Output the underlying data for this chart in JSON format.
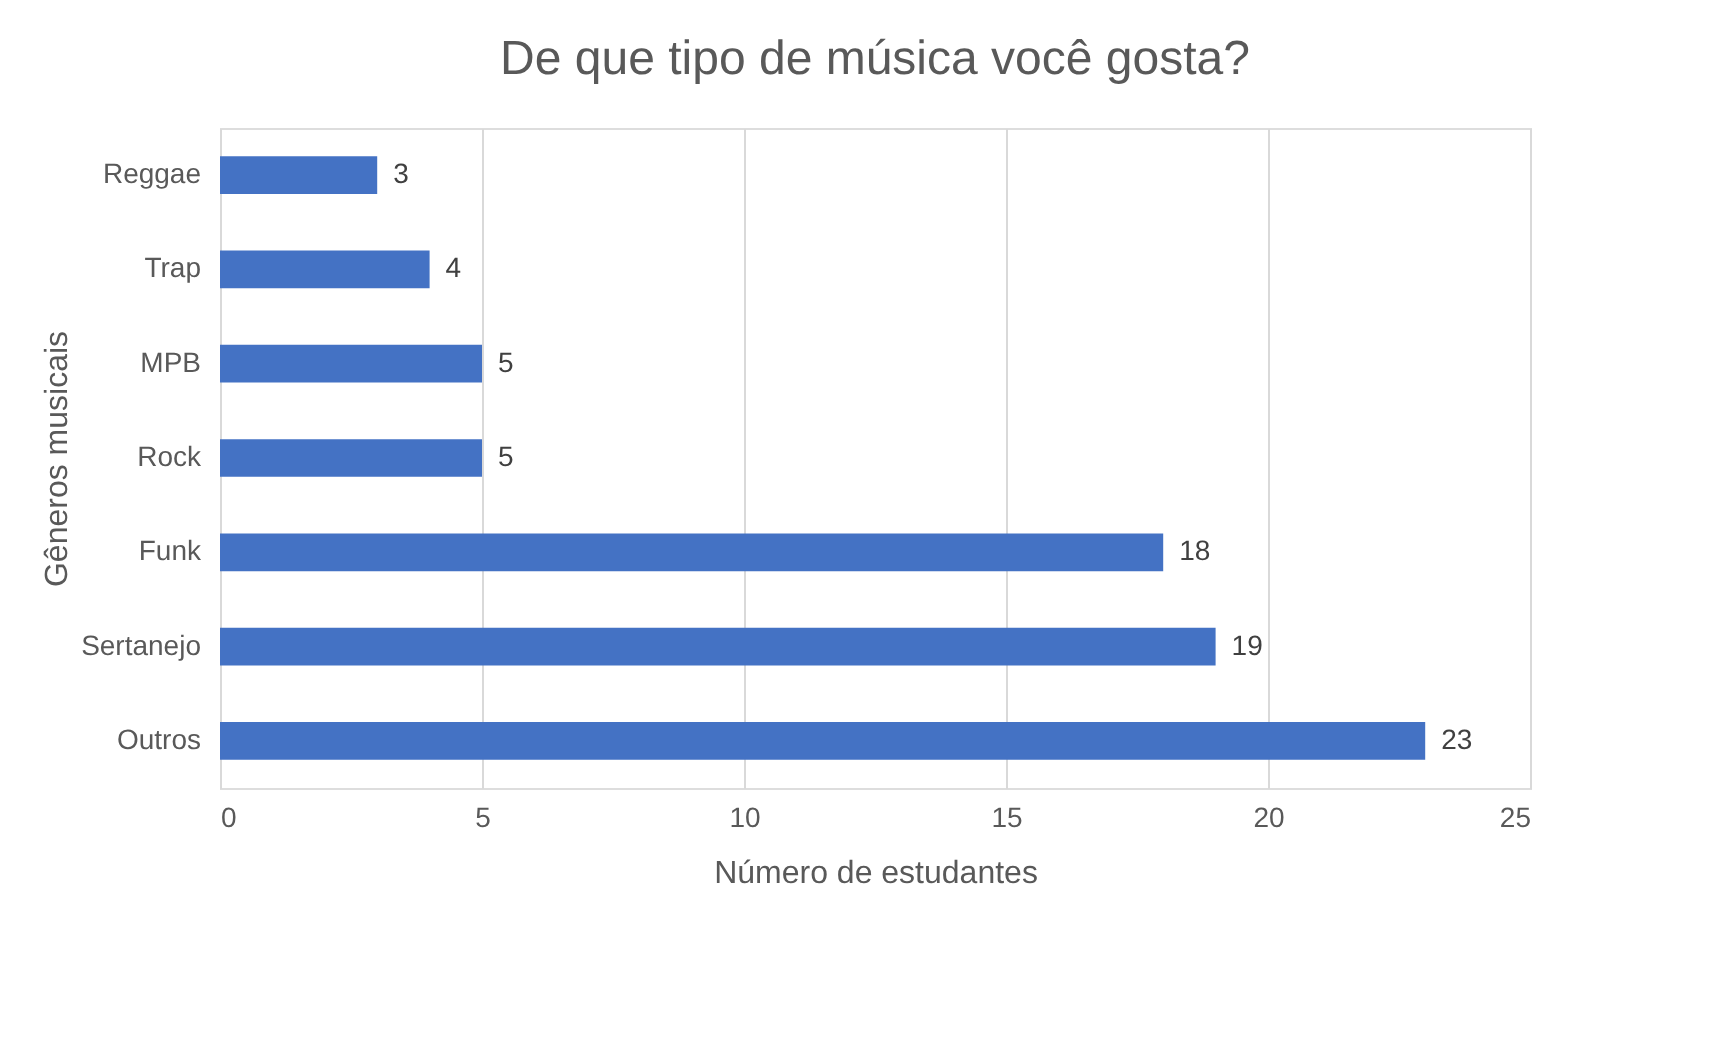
{
  "chart_data": {
    "type": "bar",
    "orientation": "horizontal",
    "title": "De que tipo de música você gosta?",
    "xlabel": "Número de estudantes",
    "ylabel": "Gêneros musicais",
    "categories": [
      "Reggae",
      "Trap",
      "MPB",
      "Rock",
      "Funk",
      "Sertanejo",
      "Outros"
    ],
    "values": [
      3,
      4,
      5,
      5,
      18,
      19,
      23
    ],
    "color": "#4472c4",
    "xlim": [
      0,
      25
    ],
    "xticks": [
      0,
      5,
      10,
      15,
      20,
      25
    ],
    "grid": "x",
    "data_labels": true
  }
}
